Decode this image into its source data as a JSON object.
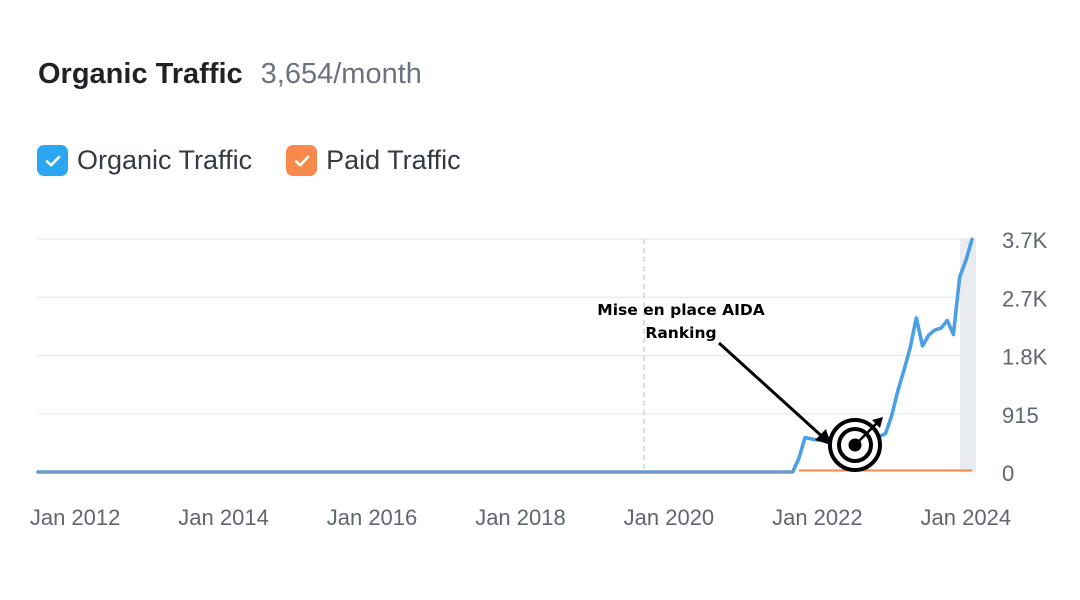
{
  "header": {
    "title": "Organic Traffic",
    "subtitle": "3,654/month"
  },
  "legend": [
    {
      "label": "Organic Traffic",
      "color": "#2aa7f0",
      "icon": "checkmark-icon",
      "checked": true
    },
    {
      "label": "Paid Traffic",
      "color": "#f7894a",
      "icon": "checkmark-icon",
      "checked": true
    }
  ],
  "annotation": {
    "lines": [
      "Mise en place AIDA",
      "Ranking"
    ],
    "icon": "target-icon"
  },
  "chart_data": {
    "type": "line",
    "title": "Organic Traffic",
    "xlabel": "",
    "ylabel": "",
    "x_ticks": [
      "Jan 2012",
      "Jan 2014",
      "Jan 2016",
      "Jan 2018",
      "Jan 2020",
      "Jan 2022",
      "Jan 2024"
    ],
    "y_ticks": [
      "0",
      "915",
      "1.8K",
      "2.7K",
      "3.7K"
    ],
    "y_tick_values": [
      0,
      915,
      1830,
      2745,
      3660
    ],
    "ylim": [
      0,
      3660
    ],
    "xlim": [
      "2011-07",
      "2024-02"
    ],
    "grid": true,
    "series": [
      {
        "name": "Organic Traffic",
        "color": "#4a9fe6",
        "points": [
          [
            "2011-07",
            0
          ],
          [
            "2021-09",
            0
          ],
          [
            "2021-10",
            210
          ],
          [
            "2021-11",
            540
          ],
          [
            "2022-01",
            500
          ],
          [
            "2022-04",
            560
          ],
          [
            "2022-07",
            470
          ],
          [
            "2022-10",
            520
          ],
          [
            "2022-12",
            600
          ],
          [
            "2023-01",
            880
          ],
          [
            "2023-02",
            1270
          ],
          [
            "2023-03",
            1600
          ],
          [
            "2023-04",
            1950
          ],
          [
            "2023-05",
            2420
          ],
          [
            "2023-06",
            1980
          ],
          [
            "2023-07",
            2150
          ],
          [
            "2023-08",
            2230
          ],
          [
            "2023-09",
            2260
          ],
          [
            "2023-10",
            2380
          ],
          [
            "2023-11",
            2160
          ],
          [
            "2023-12",
            3060
          ],
          [
            "2024-01",
            3320
          ],
          [
            "2024-02",
            3654
          ]
        ]
      },
      {
        "name": "Paid Traffic",
        "color": "#f7894a",
        "points": [
          [
            "2021-10",
            0
          ],
          [
            "2024-02",
            0
          ]
        ]
      }
    ],
    "reference_line": "2019-09",
    "highlight_band": "2024-02"
  }
}
